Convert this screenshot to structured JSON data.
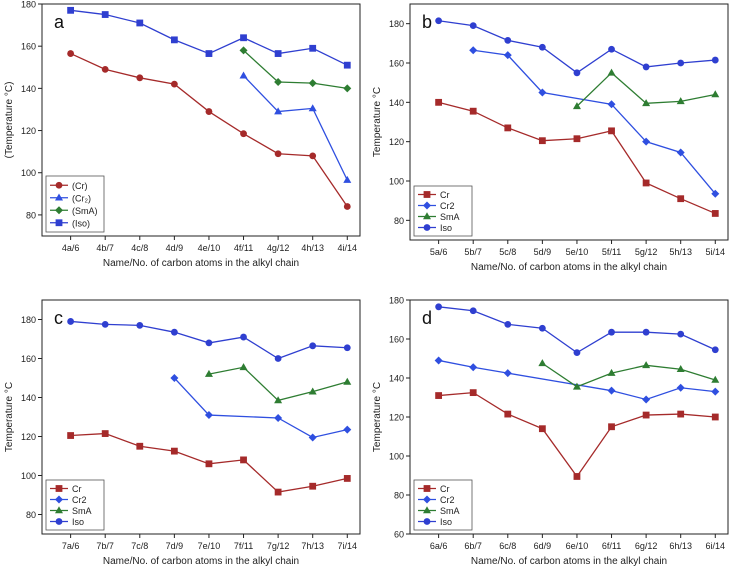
{
  "chart_data": [
    {
      "type": "line",
      "panel_label": "a",
      "title": "",
      "xlabel": "Name/No. of carbon atoms in the alkyl chain",
      "ylabel": "(Temperature °C)",
      "categories": [
        "4a/6",
        "4b/7",
        "4c/8",
        "4d/9",
        "4e/10",
        "4f/11",
        "4g/12",
        "4h/13",
        "4i/14"
      ],
      "ylim": [
        70,
        180
      ],
      "yticks": [
        80,
        100,
        120,
        140,
        160,
        180
      ],
      "legend_position": "bottom-left",
      "series": [
        {
          "name": "(Cr)",
          "marker": "circle",
          "color": "#a52a2a",
          "values": [
            156.5,
            149,
            145,
            142,
            129,
            118.5,
            109,
            108,
            84
          ]
        },
        {
          "name": "(Cr₂)",
          "marker": "triangle",
          "color": "#2f4fe0",
          "values": [
            null,
            null,
            null,
            null,
            null,
            146,
            129,
            130.5,
            96.5
          ]
        },
        {
          "name": "(SmA)",
          "marker": "diamond",
          "color": "#2e7d32",
          "values": [
            null,
            null,
            null,
            null,
            null,
            158,
            143,
            142.5,
            140
          ]
        },
        {
          "name": "(Iso)",
          "marker": "square",
          "color": "#2f3fd0",
          "values": [
            177,
            175,
            171,
            163,
            156.5,
            164,
            156.5,
            159,
            151
          ]
        }
      ]
    },
    {
      "type": "line",
      "panel_label": "b",
      "title": "",
      "xlabel": "Name/No. of carbon atoms in the alkyl chain",
      "ylabel": "Temperature °C",
      "categories": [
        "5a/6",
        "5b/7",
        "5c/8",
        "5d/9",
        "5e/10",
        "5f/11",
        "5g/12",
        "5h/13",
        "5i/14"
      ],
      "ylim": [
        70,
        190
      ],
      "yticks": [
        80,
        100,
        120,
        140,
        160,
        180
      ],
      "legend_position": "bottom-left",
      "series": [
        {
          "name": "Cr",
          "marker": "square",
          "color": "#a52a2a",
          "values": [
            140,
            135.5,
            127,
            120.5,
            121.5,
            125.5,
            99,
            91,
            83.5
          ]
        },
        {
          "name": "Cr2",
          "marker": "diamond",
          "color": "#2f4fe0",
          "values": [
            null,
            166.5,
            164,
            145,
            null,
            139,
            120,
            114.5,
            93.5
          ]
        },
        {
          "name": "SmA",
          "marker": "triangle",
          "color": "#2e7d32",
          "values": [
            null,
            null,
            null,
            null,
            138,
            155,
            139.5,
            140.5,
            144
          ]
        },
        {
          "name": "Iso",
          "marker": "circle",
          "color": "#2f3fd0",
          "values": [
            181.5,
            179,
            171.5,
            168,
            155,
            167,
            158,
            160,
            161.5
          ]
        }
      ]
    },
    {
      "type": "line",
      "panel_label": "c",
      "title": "",
      "xlabel": "Name/No. of carbon atoms in the alkyl chain",
      "ylabel": "Temperature °C",
      "categories": [
        "7a/6",
        "7b/7",
        "7c/8",
        "7d/9",
        "7e/10",
        "7f/11",
        "7g/12",
        "7h/13",
        "7i/14"
      ],
      "ylim": [
        70,
        190
      ],
      "yticks": [
        80,
        100,
        120,
        140,
        160,
        180
      ],
      "legend_position": "bottom-left",
      "series": [
        {
          "name": "Cr",
          "marker": "square",
          "color": "#a52a2a",
          "values": [
            120.5,
            121.5,
            115,
            112.5,
            106,
            108,
            91.5,
            94.5,
            98.5
          ]
        },
        {
          "name": "Cr2",
          "marker": "diamond",
          "color": "#2f4fe0",
          "values": [
            null,
            null,
            null,
            150,
            131,
            null,
            129.5,
            119.5,
            123.5
          ]
        },
        {
          "name": "SmA",
          "marker": "triangle",
          "color": "#2e7d32",
          "values": [
            null,
            null,
            null,
            null,
            152,
            155.5,
            138.5,
            143,
            148
          ]
        },
        {
          "name": "Iso",
          "marker": "circle",
          "color": "#2f3fd0",
          "values": [
            179,
            177.5,
            177,
            173.5,
            168,
            171,
            160,
            166.5,
            165.5
          ]
        }
      ]
    },
    {
      "type": "line",
      "panel_label": "d",
      "title": "",
      "xlabel": "Name/No. of carbon atoms in the alkyl chain",
      "ylabel": "Temperature °C",
      "categories": [
        "6a/6",
        "6b/7",
        "6c/8",
        "6d/9",
        "6e/10",
        "6f/11",
        "6g/12",
        "6h/13",
        "6i/14"
      ],
      "ylim": [
        60,
        180
      ],
      "yticks": [
        60,
        80,
        100,
        120,
        140,
        160,
        180
      ],
      "legend_position": "bottom-left",
      "series": [
        {
          "name": "Cr",
          "marker": "square",
          "color": "#a52a2a",
          "values": [
            131,
            132.5,
            121.5,
            114,
            89.5,
            115,
            121,
            121.5,
            120
          ]
        },
        {
          "name": "Cr2",
          "marker": "diamond",
          "color": "#2f4fe0",
          "values": [
            149,
            145.5,
            142.5,
            null,
            null,
            133.5,
            129,
            135,
            133
          ]
        },
        {
          "name": "SmA",
          "marker": "triangle",
          "color": "#2e7d32",
          "values": [
            null,
            null,
            null,
            147.5,
            135.5,
            142.5,
            146.5,
            144.5,
            139
          ]
        },
        {
          "name": "Iso",
          "marker": "circle",
          "color": "#2f3fd0",
          "values": [
            176.5,
            174.5,
            167.5,
            165.5,
            153,
            163.5,
            163.5,
            162.5,
            154.5
          ]
        }
      ]
    }
  ]
}
